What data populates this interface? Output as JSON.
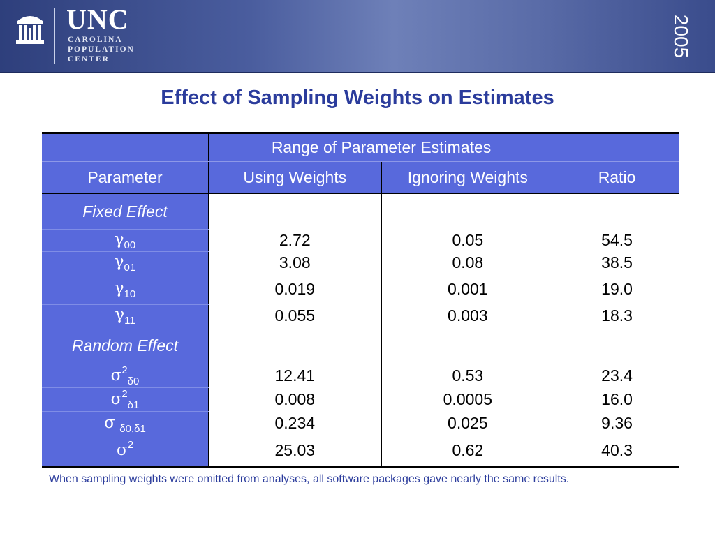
{
  "header": {
    "logo_main": "UNC",
    "logo_line1": "CAROLINA",
    "logo_line2": "POPULATION",
    "logo_line3": "CENTER",
    "year": "2005"
  },
  "slide": {
    "title": "Effect of Sampling Weights on Estimates",
    "footnote": "When sampling weights were omitted from analyses, all software packages gave nearly the same results."
  },
  "table": {
    "group_header": "Range of Parameter Estimates",
    "col_parameter": "Parameter",
    "col_weights": "Using Weights",
    "col_ignoring": "Ignoring  Weights",
    "col_ratio": "Ratio",
    "fixed_section": "Fixed Effect",
    "random_section": "Random Effect",
    "fixed_rows": [
      {
        "sym": "γ",
        "sub": "00",
        "weights": "2.72",
        "ignoring": "0.05",
        "ratio": "54.5"
      },
      {
        "sym": "γ",
        "sub": "01",
        "weights": "3.08",
        "ignoring": "0.08",
        "ratio": "38.5"
      },
      {
        "sym": "γ",
        "sub": "10",
        "weights": "0.019",
        "ignoring": "0.001",
        "ratio": "19.0"
      },
      {
        "sym": "γ",
        "sub": "11",
        "weights": "0.055",
        "ignoring": "0.003",
        "ratio": "18.3"
      }
    ],
    "random_rows": [
      {
        "sym": "σ",
        "sup": "2",
        "sub": "δ0",
        "weights": "12.41",
        "ignoring": "0.53",
        "ratio": "23.4"
      },
      {
        "sym": "σ",
        "sup": "2",
        "sub": "δ1",
        "weights": "0.008",
        "ignoring": "0.0005",
        "ratio": "16.0"
      },
      {
        "sym": "σ",
        "sup": "",
        "sub": "δ0,δ1",
        "weights": "0.234",
        "ignoring": "0.025",
        "ratio": "9.36"
      },
      {
        "sym": "σ",
        "sup": "2",
        "sub": "",
        "weights": "25.03",
        "ignoring": "0.62",
        "ratio": "40.3"
      }
    ]
  }
}
